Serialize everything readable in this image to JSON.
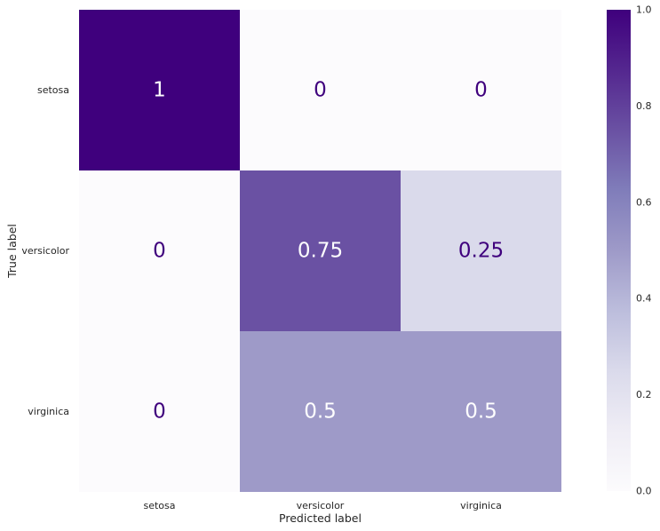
{
  "chart_data": {
    "type": "heatmap",
    "title": "",
    "xlabel": "Predicted label",
    "ylabel": "True label",
    "x_categories": [
      "setosa",
      "versicolor",
      "virginica"
    ],
    "y_categories": [
      "setosa",
      "versicolor",
      "virginica"
    ],
    "values": [
      [
        1,
        0,
        0
      ],
      [
        0,
        0.75,
        0.25
      ],
      [
        0,
        0.5,
        0.5
      ]
    ],
    "value_labels": [
      [
        "1",
        "0",
        "0"
      ],
      [
        "0",
        "0.75",
        "0.25"
      ],
      [
        "0",
        "0.5",
        "0.5"
      ]
    ],
    "colormap": "Purples",
    "colors": {
      "low": "#fcfbfd",
      "high": "#3f007d",
      "text_on_dark": "#ffffff",
      "text_on_light": "#3f007d"
    },
    "colorbar": {
      "range": [
        0.0,
        1.0
      ],
      "ticks": [
        "0.0",
        "0.2",
        "0.4",
        "0.6",
        "0.8",
        "1.0"
      ]
    },
    "grid": false
  }
}
